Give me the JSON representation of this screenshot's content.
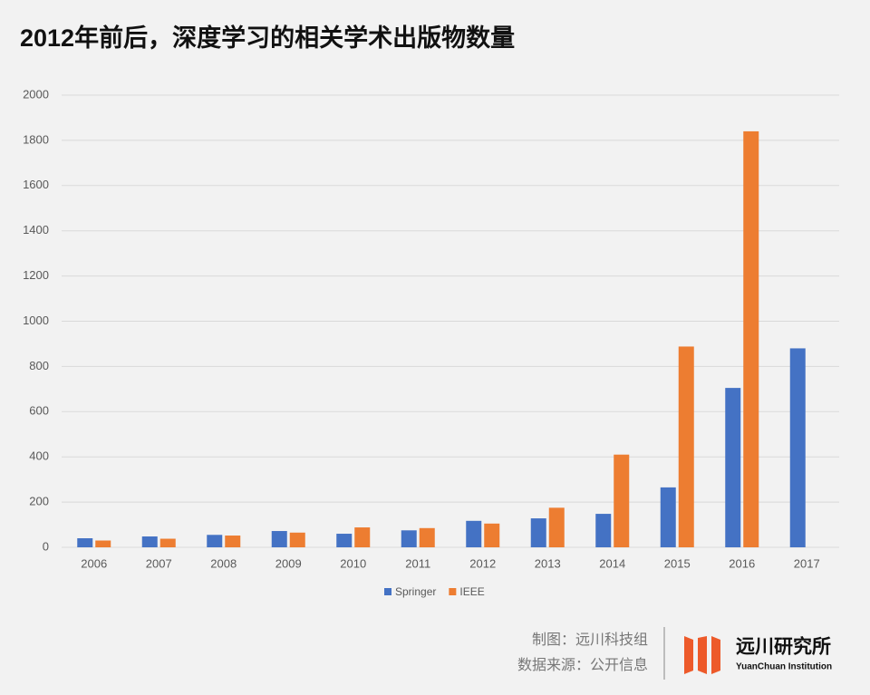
{
  "chart_data": {
    "type": "bar",
    "title": "2012年前后，深度学习的相关学术出版物数量",
    "categories": [
      "2006",
      "2007",
      "2008",
      "2009",
      "2010",
      "2011",
      "2012",
      "2013",
      "2014",
      "2015",
      "2016",
      "2017"
    ],
    "series": [
      {
        "name": "Springer",
        "color": "#4472c4",
        "values": [
          40,
          48,
          55,
          72,
          60,
          75,
          117,
          128,
          148,
          265,
          705,
          880
        ]
      },
      {
        "name": "IEEE",
        "color": "#ed7d31",
        "values": [
          30,
          38,
          52,
          65,
          88,
          85,
          105,
          175,
          410,
          888,
          1840,
          null
        ]
      }
    ],
    "ylim": [
      0,
      2000
    ],
    "yticks": [
      0,
      200,
      400,
      600,
      800,
      1000,
      1200,
      1400,
      1600,
      1800,
      2000
    ],
    "grid": true,
    "legend": "bottom"
  },
  "footer": {
    "credit": "制图：远川科技组",
    "source": "数据来源：公开信息",
    "brand": "远川研究所",
    "brand_en": "YuanChuan Institution"
  }
}
